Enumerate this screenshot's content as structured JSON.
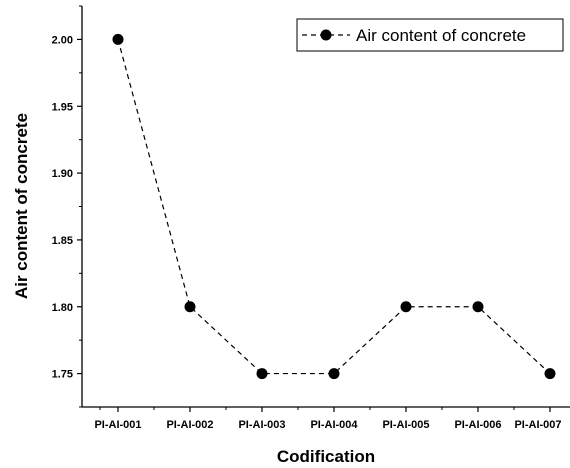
{
  "chart_data": {
    "type": "line",
    "xlabel": "Codification",
    "ylabel": "Air content of concrete",
    "categories": [
      "PI-AI-001",
      "PI-AI-002",
      "PI-AI-003",
      "PI-AI-004",
      "PI-AI-005",
      "PI-AI-006",
      "PI-AI-007"
    ],
    "series": [
      {
        "name": "Air content of concrete",
        "values": [
          2.0,
          1.8,
          1.75,
          1.75,
          1.8,
          1.8,
          1.75
        ],
        "line_style": "dashed",
        "marker": "filled-circle",
        "color": "#000000"
      }
    ],
    "ylim": [
      1.725,
      2.025
    ],
    "yticks": [
      "1.75",
      "1.80",
      "1.85",
      "1.90",
      "1.95",
      "2.00"
    ],
    "grid": false,
    "legend_position": "top-right"
  }
}
